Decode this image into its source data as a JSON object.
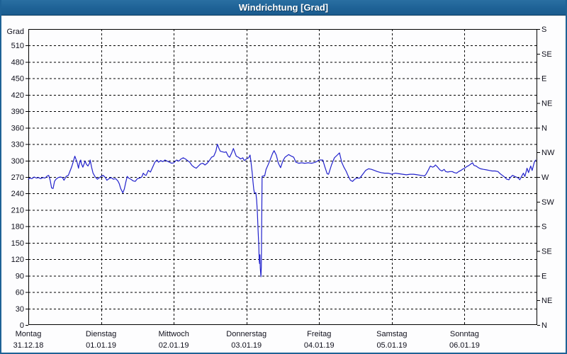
{
  "window": {
    "title": "Windrichtung [Grad]"
  },
  "colors": {
    "titlebar": "#1e6296",
    "titlebar_text": "#ffffff",
    "line": "#2222cc",
    "grid": "#000000",
    "frame": "#000000",
    "background": "#fdfdfe",
    "window_border": "#1e6296"
  },
  "chart_data": {
    "type": "line",
    "title": "Windrichtung [Grad]",
    "grid": "dashed",
    "legend_position": "none",
    "y_left": {
      "axis_title": "Grad",
      "min": 0,
      "max": 540,
      "tick_step": 30,
      "tick_labels": [
        "0",
        "30",
        "60",
        "90",
        "120",
        "150",
        "180",
        "210",
        "240",
        "270",
        "300",
        "330",
        "360",
        "390",
        "420",
        "450",
        "480",
        "510"
      ]
    },
    "y_right": {
      "ticks": [
        {
          "deg": 540,
          "label": "S"
        },
        {
          "deg": 495,
          "label": "SE"
        },
        {
          "deg": 450,
          "label": "E"
        },
        {
          "deg": 405,
          "label": "NE"
        },
        {
          "deg": 360,
          "label": "N"
        },
        {
          "deg": 315,
          "label": "NW"
        },
        {
          "deg": 270,
          "label": "W"
        },
        {
          "deg": 225,
          "label": "SW"
        },
        {
          "deg": 180,
          "label": "S"
        },
        {
          "deg": 135,
          "label": "SE"
        },
        {
          "deg": 90,
          "label": "E"
        },
        {
          "deg": 45,
          "label": "NE"
        },
        {
          "deg": 0,
          "label": "N"
        }
      ]
    },
    "x": {
      "unit": "days",
      "range": [
        0,
        7
      ],
      "days": [
        {
          "name": "Montag",
          "date": "31.12.18"
        },
        {
          "name": "Dienstag",
          "date": "01.01.19"
        },
        {
          "name": "Mittwoch",
          "date": "02.01.19"
        },
        {
          "name": "Donnerstag",
          "date": "03.01.19"
        },
        {
          "name": "Freitag",
          "date": "04.01.19"
        },
        {
          "name": "Samstag",
          "date": "05.01.19"
        },
        {
          "name": "Sonntag",
          "date": "06.01.19"
        }
      ]
    },
    "series": [
      {
        "name": "Windrichtung",
        "color": "#2222cc",
        "points": [
          [
            0,
            266
          ],
          [
            0.02,
            268
          ],
          [
            0.05,
            267
          ],
          [
            0.08,
            270
          ],
          [
            0.11,
            268
          ],
          [
            0.14,
            269
          ],
          [
            0.17,
            267
          ],
          [
            0.2,
            269
          ],
          [
            0.23,
            268
          ],
          [
            0.26,
            272
          ],
          [
            0.28,
            273
          ],
          [
            0.3,
            264
          ],
          [
            0.32,
            250
          ],
          [
            0.34,
            249
          ],
          [
            0.36,
            262
          ],
          [
            0.38,
            266
          ],
          [
            0.41,
            269
          ],
          [
            0.44,
            270
          ],
          [
            0.47,
            269
          ],
          [
            0.49,
            264
          ],
          [
            0.52,
            271
          ],
          [
            0.55,
            273
          ],
          [
            0.58,
            283
          ],
          [
            0.6,
            290
          ],
          [
            0.62,
            299
          ],
          [
            0.64,
            308
          ],
          [
            0.67,
            297
          ],
          [
            0.69,
            286
          ],
          [
            0.7,
            294
          ],
          [
            0.72,
            301
          ],
          [
            0.73,
            294
          ],
          [
            0.75,
            288
          ],
          [
            0.77,
            295
          ],
          [
            0.78,
            299
          ],
          [
            0.8,
            293
          ],
          [
            0.82,
            290
          ],
          [
            0.84,
            295
          ],
          [
            0.85,
            301
          ],
          [
            0.87,
            288
          ],
          [
            0.89,
            277
          ],
          [
            0.92,
            270
          ],
          [
            0.95,
            266
          ],
          [
            0.97,
            268
          ],
          [
            1,
            271
          ],
          [
            1.03,
            273
          ],
          [
            1.06,
            269
          ],
          [
            1.08,
            264
          ],
          [
            1.11,
            267
          ],
          [
            1.14,
            269
          ],
          [
            1.17,
            266
          ],
          [
            1.2,
            267
          ],
          [
            1.23,
            263
          ],
          [
            1.25,
            258
          ],
          [
            1.27,
            249
          ],
          [
            1.3,
            241
          ],
          [
            1.32,
            248
          ],
          [
            1.34,
            260
          ],
          [
            1.36,
            271
          ],
          [
            1.38,
            268
          ],
          [
            1.41,
            266
          ],
          [
            1.44,
            263
          ],
          [
            1.47,
            262
          ],
          [
            1.5,
            267
          ],
          [
            1.53,
            268
          ],
          [
            1.56,
            270
          ],
          [
            1.58,
            277
          ],
          [
            1.6,
            274
          ],
          [
            1.62,
            273
          ],
          [
            1.65,
            282
          ],
          [
            1.68,
            279
          ],
          [
            1.71,
            288
          ],
          [
            1.74,
            297
          ],
          [
            1.77,
            301
          ],
          [
            1.79,
            297
          ],
          [
            1.82,
            300
          ],
          [
            1.85,
            298
          ],
          [
            1.88,
            301
          ],
          [
            1.91,
            299
          ],
          [
            1.94,
            297
          ],
          [
            1.97,
            295
          ],
          [
            2,
            296
          ],
          [
            2.04,
            301
          ],
          [
            2.07,
            299
          ],
          [
            2.1,
            303
          ],
          [
            2.13,
            305
          ],
          [
            2.16,
            303
          ],
          [
            2.19,
            300
          ],
          [
            2.22,
            297
          ],
          [
            2.25,
            291
          ],
          [
            2.28,
            288
          ],
          [
            2.31,
            286
          ],
          [
            2.34,
            290
          ],
          [
            2.37,
            294
          ],
          [
            2.4,
            295
          ],
          [
            2.43,
            292
          ],
          [
            2.46,
            295
          ],
          [
            2.49,
            300
          ],
          [
            2.52,
            306
          ],
          [
            2.55,
            308
          ],
          [
            2.58,
            317
          ],
          [
            2.6,
            330
          ],
          [
            2.62,
            323
          ],
          [
            2.64,
            317
          ],
          [
            2.67,
            316
          ],
          [
            2.7,
            315
          ],
          [
            2.72,
            316
          ],
          [
            2.75,
            308
          ],
          [
            2.77,
            306
          ],
          [
            2.8,
            315
          ],
          [
            2.82,
            322
          ],
          [
            2.84,
            315
          ],
          [
            2.86,
            308
          ],
          [
            2.89,
            306
          ],
          [
            2.92,
            303
          ],
          [
            2.95,
            305
          ],
          [
            2.97,
            300
          ],
          [
            3,
            303
          ],
          [
            3.03,
            305
          ],
          [
            3.05,
            310
          ],
          [
            3.06,
            300
          ],
          [
            3.08,
            277
          ],
          [
            3.09,
            262
          ],
          [
            3.1,
            248
          ],
          [
            3.11,
            241
          ],
          [
            3.13,
            241
          ],
          [
            3.14,
            228
          ],
          [
            3.15,
            206
          ],
          [
            3.16,
            174
          ],
          [
            3.17,
            143
          ],
          [
            3.175,
            118
          ],
          [
            3.18,
            112
          ],
          [
            3.185,
            128
          ],
          [
            3.19,
            104
          ],
          [
            3.2,
            88
          ],
          [
            3.205,
            106
          ],
          [
            3.215,
            271
          ],
          [
            3.23,
            272
          ],
          [
            3.25,
            272
          ],
          [
            3.27,
            284
          ],
          [
            3.3,
            293
          ],
          [
            3.33,
            303
          ],
          [
            3.36,
            313
          ],
          [
            3.38,
            318
          ],
          [
            3.41,
            310
          ],
          [
            3.44,
            295
          ],
          [
            3.47,
            287
          ],
          [
            3.5,
            299
          ],
          [
            3.53,
            306
          ],
          [
            3.58,
            311
          ],
          [
            3.62,
            308
          ],
          [
            3.65,
            306
          ],
          [
            3.68,
            297
          ],
          [
            3.72,
            295
          ],
          [
            3.76,
            296
          ],
          [
            3.8,
            295
          ],
          [
            3.85,
            296
          ],
          [
            3.9,
            295
          ],
          [
            3.95,
            297
          ],
          [
            4,
            301
          ],
          [
            4.05,
            301
          ],
          [
            4.08,
            288
          ],
          [
            4.11,
            276
          ],
          [
            4.13,
            275
          ],
          [
            4.17,
            292
          ],
          [
            4.21,
            305
          ],
          [
            4.25,
            310
          ],
          [
            4.28,
            314
          ],
          [
            4.31,
            297
          ],
          [
            4.34,
            288
          ],
          [
            4.37,
            281
          ],
          [
            4.4,
            272
          ],
          [
            4.43,
            264
          ],
          [
            4.46,
            262
          ],
          [
            4.49,
            266
          ],
          [
            4.52,
            268
          ],
          [
            4.56,
            268
          ],
          [
            4.6,
            275
          ],
          [
            4.64,
            282
          ],
          [
            4.68,
            285
          ],
          [
            4.72,
            284
          ],
          [
            4.76,
            282
          ],
          [
            4.8,
            280
          ],
          [
            4.85,
            278
          ],
          [
            4.9,
            277
          ],
          [
            4.95,
            277
          ],
          [
            5,
            275
          ],
          [
            5.05,
            277
          ],
          [
            5.1,
            276
          ],
          [
            5.15,
            275
          ],
          [
            5.2,
            274
          ],
          [
            5.25,
            275
          ],
          [
            5.3,
            275
          ],
          [
            5.35,
            274
          ],
          [
            5.4,
            273
          ],
          [
            5.45,
            272
          ],
          [
            5.47,
            275
          ],
          [
            5.5,
            282
          ],
          [
            5.53,
            290
          ],
          [
            5.56,
            288
          ],
          [
            5.58,
            289
          ],
          [
            5.6,
            292
          ],
          [
            5.63,
            288
          ],
          [
            5.66,
            283
          ],
          [
            5.69,
            281
          ],
          [
            5.72,
            284
          ],
          [
            5.74,
            280
          ],
          [
            5.77,
            279
          ],
          [
            5.8,
            280
          ],
          [
            5.83,
            280
          ],
          [
            5.86,
            278
          ],
          [
            5.89,
            277
          ],
          [
            5.92,
            280
          ],
          [
            5.95,
            282
          ],
          [
            5.97,
            284
          ],
          [
            6,
            286
          ],
          [
            6.03,
            289
          ],
          [
            6.06,
            291
          ],
          [
            6.09,
            294
          ],
          [
            6.11,
            296
          ],
          [
            6.13,
            291
          ],
          [
            6.16,
            290
          ],
          [
            6.19,
            287
          ],
          [
            6.22,
            285
          ],
          [
            6.26,
            284
          ],
          [
            6.3,
            283
          ],
          [
            6.34,
            282
          ],
          [
            6.38,
            281
          ],
          [
            6.42,
            281
          ],
          [
            6.46,
            280
          ],
          [
            6.49,
            276
          ],
          [
            6.52,
            273
          ],
          [
            6.55,
            270
          ],
          [
            6.58,
            266
          ],
          [
            6.61,
            265
          ],
          [
            6.63,
            269
          ],
          [
            6.66,
            273
          ],
          [
            6.69,
            271
          ],
          [
            6.71,
            270
          ],
          [
            6.74,
            268
          ],
          [
            6.76,
            265
          ],
          [
            6.78,
            270
          ],
          [
            6.81,
            277
          ],
          [
            6.83,
            271
          ],
          [
            6.86,
            286
          ],
          [
            6.88,
            278
          ],
          [
            6.91,
            290
          ],
          [
            6.93,
            282
          ],
          [
            6.96,
            297
          ],
          [
            6.98,
            301
          ]
        ]
      }
    ]
  }
}
